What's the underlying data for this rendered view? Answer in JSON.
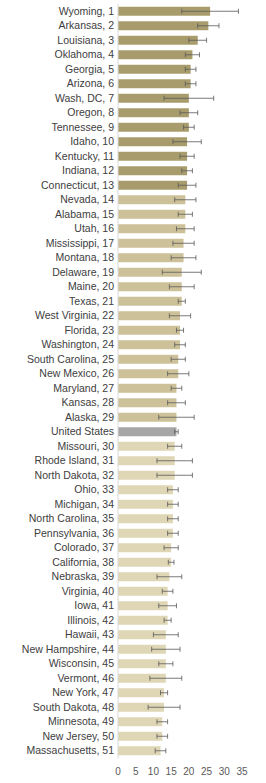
{
  "chart_data": {
    "type": "bar",
    "orientation": "horizontal",
    "grid": false,
    "categories": [
      "Wyoming, 1",
      "Arkansas, 2",
      "Louisiana, 3",
      "Oklahoma, 4",
      "Georgia, 5",
      "Arizona, 6",
      "Wash, DC, 7",
      "Oregon, 8",
      "Tennessee, 9",
      "Idaho, 10",
      "Kentucky, 11",
      "Indiana, 12",
      "Connecticut, 13",
      "Nevada, 14",
      "Alabama, 15",
      "Utah, 16",
      "Mississippi, 17",
      "Montana, 18",
      "Delaware, 19",
      "Maine, 20",
      "Texas, 21",
      "West Virginia, 22",
      "Florida, 23",
      "Washington, 24",
      "South Carolina, 25",
      "New Mexico, 26",
      "Maryland, 27",
      "Kansas, 28",
      "Alaska, 29",
      "United States",
      "Missouri, 30",
      "Rhode Island, 31",
      "North Dakota, 32",
      "Ohio, 33",
      "Michigan, 34",
      "North Carolina, 35",
      "Pennsylvania, 36",
      "Colorado, 37",
      "California, 38",
      "Nebraska, 39",
      "Virginia, 40",
      "Iowa, 41",
      "Illinois, 42",
      "Hawaii, 43",
      "New Hampshire, 44",
      "Wisconsin, 45",
      "Vermont, 46",
      "New York, 47",
      "South Dakota, 48",
      "Minnesota, 49",
      "New Jersey, 50",
      "Massachusetts, 51"
    ],
    "values": [
      26,
      25.5,
      22.5,
      21,
      20.5,
      20.5,
      20,
      20,
      20,
      19.5,
      19.5,
      19.5,
      19.5,
      19,
      19,
      19,
      18.5,
      18.5,
      18,
      18,
      18,
      17.5,
      17.5,
      17.5,
      17,
      17,
      16.5,
      16.5,
      16.5,
      16.5,
      16,
      16,
      16,
      15.5,
      15.5,
      15.5,
      15.5,
      15,
      15,
      14.5,
      14,
      14,
      14,
      13.5,
      13.5,
      13.5,
      13.5,
      13,
      13,
      12.5,
      12.5,
      12
    ],
    "errors": [
      8,
      3,
      2.5,
      2,
      1.5,
      1.5,
      7,
      2.5,
      1.5,
      4,
      2,
      1.5,
      2.5,
      3,
      2,
      2.5,
      3,
      3.5,
      5.5,
      3.5,
      1,
      3,
      1,
      1.5,
      2,
      3,
      1.5,
      2.5,
      5,
      0.5,
      2,
      5,
      5,
      1.5,
      1.5,
      1.5,
      1.5,
      2,
      0.8,
      3.5,
      1.5,
      2.5,
      1,
      3.5,
      4,
      2,
      4.5,
      1,
      4.5,
      1.5,
      1.5,
      1.5
    ],
    "colors": [
      "#a89c6c",
      "#a89c6c",
      "#a89c6c",
      "#a89c6c",
      "#a89c6c",
      "#a89c6c",
      "#a89c6c",
      "#a89c6c",
      "#a89c6c",
      "#a89c6c",
      "#a89c6c",
      "#a89c6c",
      "#a89c6c",
      "#cdc199",
      "#cdc199",
      "#cdc199",
      "#cdc199",
      "#cdc199",
      "#cdc199",
      "#cdc199",
      "#cdc199",
      "#cdc199",
      "#cdc199",
      "#cdc199",
      "#cdc199",
      "#cdc199",
      "#cdc199",
      "#cdc199",
      "#cdc199",
      "#a6a6a6",
      "#ded6b4",
      "#ded6b4",
      "#ded6b4",
      "#ded6b4",
      "#ded6b4",
      "#ded6b4",
      "#ded6b4",
      "#ded6b4",
      "#ded6b4",
      "#ded6b4",
      "#ded6b4",
      "#ded6b4",
      "#ded6b4",
      "#ded6b4",
      "#ded6b4",
      "#ded6b4",
      "#ded6b4",
      "#ded6b4",
      "#ded6b4",
      "#ded6b4",
      "#ded6b4",
      "#ded6b4"
    ],
    "xlim": [
      0,
      35
    ],
    "xticks": [
      0,
      5,
      10,
      15,
      20,
      25,
      30,
      35
    ]
  }
}
